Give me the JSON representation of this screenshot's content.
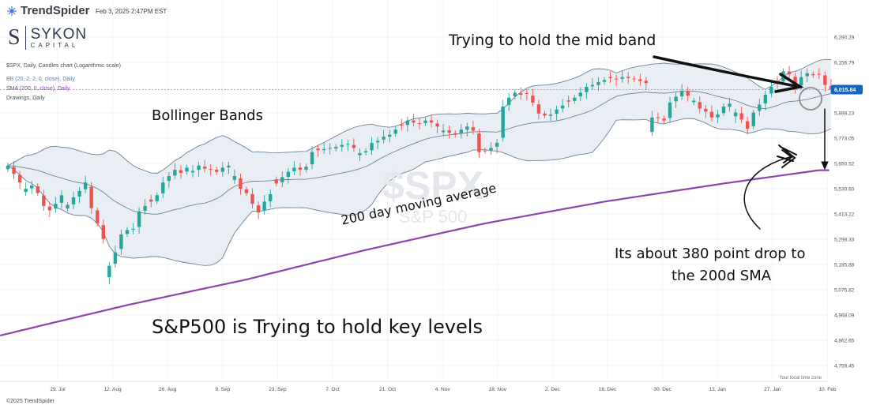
{
  "header": {
    "logo_text": "TrendSpider",
    "timestamp": "Feb 3, 2025 2:47PM EST",
    "brand_name": "SYKON",
    "brand_sub": "CAPITAL",
    "legend": [
      {
        "text": "$SPX, Daily, Candles chart (Logarithmic scale)",
        "color": "#4a4f57"
      },
      {
        "text": "BB (20, 2, 2, 0, close), Daily",
        "color": "#5b7fa6"
      },
      {
        "text": "SMA (200, 0, close), Daily",
        "color": "#8e44ad"
      },
      {
        "text": "Drawings, Daily",
        "color": "#4a4f57"
      }
    ],
    "copyright": "©2025 TrendSpider",
    "timezone": "Your local time zone"
  },
  "watermark": {
    "symbol": "$SPX",
    "name": "S&P 500"
  },
  "annotations": {
    "mid_band": "Trying to hold the mid band",
    "bollinger": "Bollinger Bands",
    "sma200": "200 day moving average",
    "drop_line1": "Its about 380 point drop to",
    "drop_line2": "the 200d SMA",
    "key_levels": "S&P500 is Trying to hold key levels"
  },
  "colors": {
    "up": "#26a69a",
    "down": "#ef5350",
    "band_fill": "#e8eef3",
    "band_line": "#6d8296",
    "sma": "#8e44ad",
    "price_badge": "#1565c0"
  },
  "chart_data": {
    "type": "candlestick",
    "title": "$SPX, Daily, Candles chart (Logarithmic scale)",
    "y_scale": "log",
    "ylim": [
      4680,
      6390
    ],
    "y_ticks": [
      6290.29,
      6156.79,
      6015.84,
      5898.23,
      5773.05,
      5650.52,
      5530.6,
      5413.22,
      5298.33,
      5185.88,
      5075.82,
      4968.09,
      4862.65,
      4759.45
    ],
    "y_tick_labels": [
      "6,290.29",
      "6,156.79",
      "6,015.84",
      "5,898.23",
      "5,773.05",
      "5,650.52",
      "5,530.60",
      "5,413.22",
      "5,298.33",
      "5,185.88",
      "5,075.82",
      "4,968.09",
      "4,862.65",
      "4,759.45"
    ],
    "current_price": 6015.84,
    "x_ticks": [
      "29. Jul",
      "12. Aug",
      "26. Aug",
      "9. Sep",
      "23. Sep",
      "7. Oct",
      "21. Oct",
      "4. Nov",
      "18. Nov",
      "2. Dec",
      "16. Dec",
      "30. Dec",
      "13. Jan",
      "27. Jan",
      "10. Feb"
    ],
    "closes": [
      5640,
      5600,
      5560,
      5530,
      5545,
      5510,
      5450,
      5430,
      5460,
      5500,
      5455,
      5490,
      5520,
      5560,
      5440,
      5370,
      5300,
      5180,
      5240,
      5320,
      5340,
      5345,
      5425,
      5450,
      5470,
      5500,
      5560,
      5590,
      5620,
      5605,
      5630,
      5615,
      5640,
      5625,
      5620,
      5610,
      5630,
      5640,
      5590,
      5530,
      5510,
      5460,
      5420,
      5470,
      5505,
      5555,
      5585,
      5610,
      5630,
      5620,
      5635,
      5705,
      5715,
      5720,
      5725,
      5730,
      5740,
      5745,
      5725,
      5700,
      5710,
      5750,
      5760,
      5780,
      5790,
      5815,
      5835,
      5860,
      5850,
      5845,
      5860,
      5850,
      5830,
      5810,
      5800,
      5790,
      5815,
      5830,
      5810,
      5705,
      5712,
      5725,
      5750,
      5930,
      5975,
      6000,
      5990,
      5995,
      5950,
      5895,
      5885,
      5890,
      5915,
      5935,
      5955,
      5975,
      6000,
      6030,
      6040,
      6055,
      6065,
      6075,
      6070,
      6080,
      6075,
      6070,
      6060,
      6050,
      5875,
      5875,
      5860,
      5950,
      5980,
      6010,
      5985,
      5960,
      5920,
      5905,
      5875,
      5890,
      5930,
      5945,
      5900,
      5865,
      5820,
      5900,
      5940,
      5990,
      6030,
      6050,
      6110,
      6095,
      6030,
      6080,
      6100,
      6090,
      6095,
      6040,
      6015.84
    ],
    "sma200_anchors": [
      [
        0,
        4890
      ],
      [
        20,
        5010
      ],
      [
        40,
        5120
      ],
      [
        60,
        5250
      ],
      [
        80,
        5370
      ],
      [
        100,
        5470
      ],
      [
        120,
        5555
      ],
      [
        136,
        5618
      ]
    ]
  }
}
